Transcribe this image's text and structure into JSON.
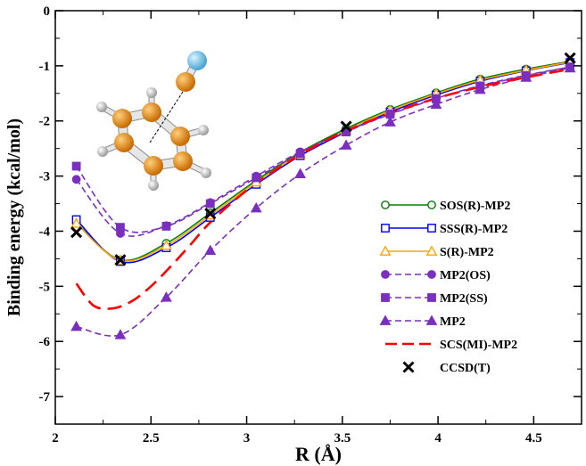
{
  "chart_data": {
    "type": "line",
    "xlabel": "R (Å)",
    "ylabel": "Binding energy (kcal/mol)",
    "xlim": [
      2.0,
      4.75
    ],
    "ylim": [
      -7.5,
      0.0
    ],
    "xticks": [
      "2",
      "2.5",
      "3",
      "3.5",
      "4",
      "4.5"
    ],
    "yticks": [
      "0",
      "-1",
      "-2",
      "-3",
      "-4",
      "-5",
      "-6",
      "-7"
    ],
    "grid": false,
    "legend": "right",
    "inset": "benzene-dimer molecule sketch, top-left",
    "series": [
      {
        "name": "SOS(R)-MP2",
        "color": "#008000",
        "style": "solid",
        "marker": "circle-open",
        "x": [
          2.11,
          2.34,
          2.58,
          2.81,
          3.05,
          3.28,
          3.52,
          3.75,
          3.99,
          4.22,
          4.46,
          4.69
        ],
        "y": [
          -3.85,
          -4.52,
          -4.22,
          -3.67,
          -3.08,
          -2.57,
          -2.14,
          -1.79,
          -1.49,
          -1.24,
          -1.06,
          -0.92
        ]
      },
      {
        "name": "SSS(R)-MP2",
        "color": "#0000ff",
        "style": "solid",
        "marker": "square-open",
        "x": [
          2.11,
          2.34,
          2.58,
          2.81,
          3.05,
          3.28,
          3.52,
          3.75,
          3.99,
          4.22,
          4.46,
          4.69
        ],
        "y": [
          -3.79,
          -4.55,
          -4.3,
          -3.75,
          -3.15,
          -2.63,
          -2.2,
          -1.84,
          -1.53,
          -1.28,
          -1.09,
          -0.94
        ]
      },
      {
        "name": "S(R)-MP2",
        "color": "#ffa500",
        "style": "solid",
        "marker": "triangle-open",
        "x": [
          2.11,
          2.34,
          2.58,
          2.81,
          3.05,
          3.28,
          3.52,
          3.75,
          3.99,
          4.22,
          4.46,
          4.69
        ],
        "y": [
          -3.86,
          -4.53,
          -4.26,
          -3.71,
          -3.11,
          -2.6,
          -2.17,
          -1.81,
          -1.51,
          -1.26,
          -1.08,
          -0.93
        ]
      },
      {
        "name": "MP2(OS)",
        "color": "#7b2fbe",
        "style": "dashed",
        "marker": "circle-filled",
        "x": [
          2.11,
          2.34,
          2.58,
          2.81,
          3.05,
          3.28,
          3.52,
          3.75,
          3.99,
          4.22,
          4.46,
          4.69
        ],
        "y": [
          -3.06,
          -4.04,
          -3.9,
          -3.48,
          -3.0,
          -2.56,
          -2.19,
          -1.87,
          -1.59,
          -1.36,
          -1.17,
          -1.02
        ]
      },
      {
        "name": "MP2(SS)",
        "color": "#7b2fbe",
        "style": "dashed",
        "marker": "square-filled",
        "x": [
          2.11,
          2.34,
          2.58,
          2.81,
          3.05,
          3.28,
          3.52,
          3.75,
          3.99,
          4.22,
          4.46,
          4.69
        ],
        "y": [
          -2.82,
          -3.93,
          -3.91,
          -3.5,
          -3.03,
          -2.59,
          -2.2,
          -1.88,
          -1.6,
          -1.37,
          -1.18,
          -1.02
        ]
      },
      {
        "name": "MP2",
        "color": "#7b2fbe",
        "style": "dashed",
        "marker": "triangle-filled",
        "x": [
          2.11,
          2.34,
          2.58,
          2.81,
          3.05,
          3.28,
          3.52,
          3.75,
          3.99,
          4.22,
          4.46,
          4.69
        ],
        "y": [
          -5.73,
          -5.88,
          -5.2,
          -4.35,
          -3.58,
          -2.96,
          -2.44,
          -2.02,
          -1.7,
          -1.43,
          -1.21,
          -1.04
        ]
      },
      {
        "name": "SCS(MI)-MP2",
        "color": "#ff0000",
        "style": "longdash",
        "marker": "none",
        "x": [
          2.11,
          2.2,
          2.3,
          2.4,
          2.5,
          2.6,
          2.7,
          2.81,
          3.0,
          3.2,
          3.4,
          3.6,
          3.8,
          4.0,
          4.2,
          4.4,
          4.69
        ],
        "y": [
          -4.95,
          -5.35,
          -5.4,
          -5.27,
          -5.0,
          -4.65,
          -4.27,
          -3.84,
          -3.26,
          -2.78,
          -2.38,
          -2.06,
          -1.8,
          -1.58,
          -1.4,
          -1.25,
          -1.06
        ]
      },
      {
        "name": "CCSD(T)",
        "color": "#000000",
        "style": "none",
        "marker": "cross",
        "x": [
          2.11,
          2.34,
          2.81,
          3.52,
          4.69
        ],
        "y": [
          -4.02,
          -4.52,
          -3.68,
          -2.1,
          -0.86
        ]
      }
    ]
  }
}
